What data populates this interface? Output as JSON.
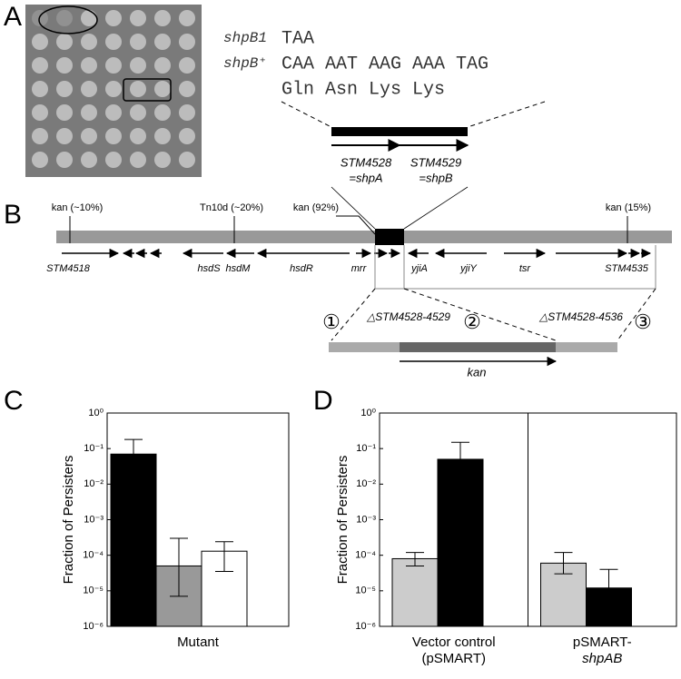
{
  "panel_labels": [
    "A",
    "B",
    "C",
    "D"
  ],
  "panel_a": {
    "sequence": {
      "rows": [
        {
          "label": "shpB1",
          "codons": "TAA"
        },
        {
          "label": "shpB⁺",
          "codons": "CAA AAT AAG AAA TAG"
        }
      ],
      "translation": "Gln Asn Lys Lys"
    },
    "genes": [
      {
        "name": "STM4528",
        "alias": "=shpA"
      },
      {
        "name": "STM4529",
        "alias": "=shpB"
      }
    ]
  },
  "panel_b": {
    "insertions": [
      "kan (~10%)",
      "Tn10d (~20%)",
      "kan (92%)",
      "kan (15%)"
    ],
    "genes": [
      "STM4518",
      "hsdS",
      "hsdM",
      "hsdR",
      "mrr",
      "yjiA",
      "yjiY",
      "tsr",
      "STM4535"
    ],
    "deletions": [
      "△STM4528-4529",
      "△STM4528-4536"
    ],
    "sites": [
      "①",
      "②",
      "③"
    ],
    "cassette": "kan"
  },
  "chart_data": [
    {
      "type": "bar",
      "y_label": "Fraction of  Persisters",
      "log": true,
      "categories": [
        [
          "Mutant"
        ]
      ],
      "ylim": [
        1e-06,
        1
      ],
      "yticks": [
        {
          "value": 1,
          "label": "10⁰"
        },
        {
          "value": 0.1,
          "label": "10⁻¹"
        },
        {
          "value": 0.01,
          "label": "10⁻²"
        },
        {
          "value": 0.001,
          "label": "10⁻³"
        },
        {
          "value": 0.0001,
          "label": "10⁻⁴"
        },
        {
          "value": 1e-05,
          "label": "10⁻⁵"
        },
        {
          "value": 1e-06,
          "label": "10⁻⁶"
        }
      ],
      "series": [
        {
          "color": "#000000",
          "values": [
            0.07
          ],
          "upper": [
            0.18
          ],
          "lower": [
            null
          ]
        },
        {
          "color": "#999999",
          "values": [
            5e-05
          ],
          "upper": [
            0.0003
          ],
          "lower": [
            7e-06
          ]
        },
        {
          "color": "#ffffff",
          "values": [
            0.00013
          ],
          "upper": [
            0.00024
          ],
          "lower": [
            3.5e-05
          ]
        }
      ]
    },
    {
      "type": "bar",
      "y_label": "Fraction of  Persisters",
      "log": true,
      "categories": [
        [
          "Vector control",
          "(pSMART)"
        ],
        [
          "pSMART-",
          "shpAB"
        ]
      ],
      "ylim": [
        1e-06,
        1
      ],
      "yticks": [
        {
          "value": 1,
          "label": "10⁰"
        },
        {
          "value": 0.1,
          "label": "10⁻¹"
        },
        {
          "value": 0.01,
          "label": "10⁻²"
        },
        {
          "value": 0.001,
          "label": "10⁻³"
        },
        {
          "value": 0.0001,
          "label": "10⁻⁴"
        },
        {
          "value": 1e-05,
          "label": "10⁻⁵"
        },
        {
          "value": 1e-06,
          "label": "10⁻⁶"
        }
      ],
      "series": [
        {
          "color": "#cccccc",
          "values": [
            8e-05,
            6e-05
          ],
          "upper": [
            0.00012,
            0.00012
          ],
          "lower": [
            5e-05,
            3e-05
          ]
        },
        {
          "color": "#000000",
          "values": [
            0.05,
            1.2e-05
          ],
          "upper": [
            0.15,
            4e-05
          ],
          "lower": [
            null,
            null
          ]
        }
      ]
    }
  ]
}
